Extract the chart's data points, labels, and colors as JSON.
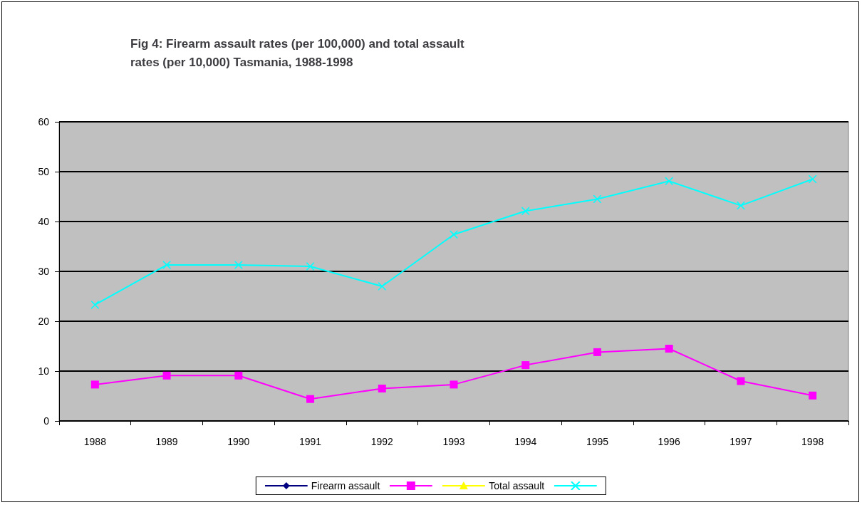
{
  "chart_data": {
    "type": "line",
    "title": "Fig 4: Firearm assault rates (per 100,000) and total assault rates (per 10,000) Tasmania, 1988-1998",
    "categories": [
      "1988",
      "1989",
      "1990",
      "1991",
      "1992",
      "1993",
      "1994",
      "1995",
      "1996",
      "1997",
      "1998"
    ],
    "series": [
      {
        "name": "Firearm assault",
        "color": "#000080",
        "marker": "diamond",
        "values": [
          null,
          null,
          null,
          null,
          null,
          null,
          null,
          null,
          null,
          null,
          null
        ]
      },
      {
        "color": "#ff00ff",
        "marker": "square",
        "values": [
          7.3,
          9.1,
          9.1,
          4.4,
          6.5,
          7.3,
          11.2,
          13.8,
          14.5,
          8.0,
          5.1
        ]
      },
      {
        "name": "Total assault",
        "color": "#ffff00",
        "marker": "triangle",
        "values": [
          null,
          null,
          null,
          null,
          null,
          null,
          null,
          null,
          null,
          null,
          null
        ]
      },
      {
        "color": "#00ffff",
        "marker": "cross",
        "values": [
          23.3,
          31.3,
          31.3,
          31.0,
          27.0,
          37.4,
          42.1,
          44.5,
          48.1,
          43.2,
          48.5
        ]
      }
    ],
    "ylim": [
      0,
      60
    ],
    "yticks": [
      0,
      10,
      20,
      30,
      40,
      50,
      60
    ],
    "grid": "y",
    "legend": "bottom"
  }
}
